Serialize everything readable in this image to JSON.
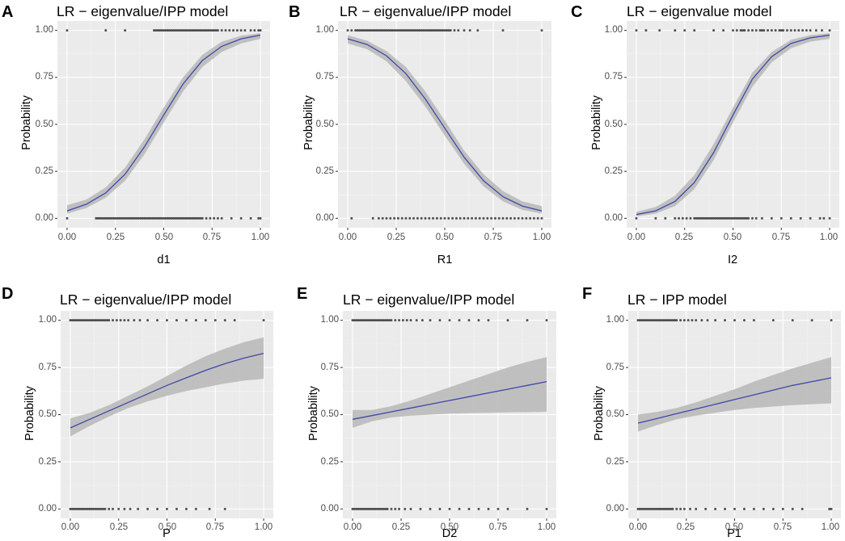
{
  "figure": {
    "background": "#ffffff"
  },
  "style": {
    "panel_bg": "#ebebeb",
    "grid_major": "#ffffff",
    "grid_minor": "#f5f5f5",
    "ribbon": "#bdbdbd",
    "line": "#3f48a8",
    "point": "#1a1a1a"
  },
  "chart_data": [
    {
      "letter": "A",
      "title": "LR − eigenvalue/IPP model",
      "type": "line",
      "xlabel": "d1",
      "ylabel": "Probability",
      "xlim": [
        0,
        1
      ],
      "ylim": [
        0,
        1
      ],
      "x_ticks": [
        "0.00",
        "0.25",
        "0.50",
        "0.75",
        "1.00"
      ],
      "y_ticks": [
        "0.00",
        "0.25",
        "0.50",
        "0.75",
        "1.00"
      ],
      "curve": {
        "x": [
          0,
          0.1,
          0.2,
          0.3,
          0.4,
          0.5,
          0.6,
          0.7,
          0.8,
          0.9,
          1.0
        ],
        "y": [
          0.04,
          0.075,
          0.135,
          0.235,
          0.38,
          0.55,
          0.715,
          0.84,
          0.915,
          0.955,
          0.975
        ],
        "lower": [
          0.025,
          0.055,
          0.11,
          0.2,
          0.34,
          0.51,
          0.675,
          0.805,
          0.885,
          0.93,
          0.955
        ],
        "upper": [
          0.07,
          0.1,
          0.165,
          0.27,
          0.42,
          0.59,
          0.75,
          0.87,
          0.94,
          0.972,
          0.985
        ]
      },
      "points": {
        "y1": [
          0.0,
          0.2,
          0.3,
          0.45,
          0.46,
          0.47,
          0.48,
          0.49,
          0.5,
          0.51,
          0.52,
          0.53,
          0.54,
          0.55,
          0.56,
          0.57,
          0.58,
          0.59,
          0.6,
          0.61,
          0.62,
          0.63,
          0.64,
          0.65,
          0.66,
          0.67,
          0.68,
          0.69,
          0.7,
          0.71,
          0.72,
          0.73,
          0.74,
          0.75,
          0.76,
          0.77,
          0.78,
          0.8,
          0.82,
          0.84,
          0.86,
          0.88,
          0.9,
          0.92,
          0.95,
          0.97,
          0.99,
          1.0
        ],
        "y0": [
          0.0,
          0.15,
          0.16,
          0.17,
          0.18,
          0.19,
          0.2,
          0.21,
          0.22,
          0.23,
          0.24,
          0.25,
          0.26,
          0.27,
          0.28,
          0.29,
          0.3,
          0.31,
          0.32,
          0.33,
          0.34,
          0.35,
          0.36,
          0.37,
          0.38,
          0.39,
          0.4,
          0.41,
          0.42,
          0.43,
          0.44,
          0.45,
          0.46,
          0.47,
          0.48,
          0.49,
          0.5,
          0.51,
          0.52,
          0.53,
          0.54,
          0.55,
          0.56,
          0.57,
          0.58,
          0.59,
          0.6,
          0.61,
          0.62,
          0.63,
          0.64,
          0.65,
          0.66,
          0.67,
          0.68,
          0.69,
          0.7,
          0.72,
          0.74,
          0.76,
          0.78,
          0.8,
          0.85,
          0.9,
          0.95,
          0.99,
          1.0
        ]
      }
    },
    {
      "letter": "B",
      "title": "LR − eigenvalue/IPP model",
      "type": "line",
      "xlabel": "R1",
      "ylabel": "Probability",
      "xlim": [
        0,
        1
      ],
      "ylim": [
        0,
        1
      ],
      "x_ticks": [
        "0.00",
        "0.25",
        "0.50",
        "0.75",
        "1.00"
      ],
      "y_ticks": [
        "0.00",
        "0.25",
        "0.50",
        "0.75",
        "1.00"
      ],
      "curve": {
        "x": [
          0,
          0.1,
          0.2,
          0.3,
          0.4,
          0.5,
          0.6,
          0.7,
          0.8,
          0.9,
          1.0
        ],
        "y": [
          0.955,
          0.925,
          0.865,
          0.77,
          0.635,
          0.48,
          0.325,
          0.2,
          0.115,
          0.065,
          0.04
        ],
        "lower": [
          0.93,
          0.9,
          0.835,
          0.73,
          0.595,
          0.44,
          0.29,
          0.17,
          0.09,
          0.045,
          0.025
        ],
        "upper": [
          0.975,
          0.945,
          0.89,
          0.805,
          0.675,
          0.52,
          0.36,
          0.235,
          0.145,
          0.09,
          0.065
        ]
      },
      "points": {
        "y1": [
          0.0,
          0.02,
          0.04,
          0.05,
          0.06,
          0.07,
          0.08,
          0.09,
          0.1,
          0.11,
          0.12,
          0.13,
          0.14,
          0.15,
          0.16,
          0.17,
          0.18,
          0.19,
          0.2,
          0.21,
          0.22,
          0.23,
          0.24,
          0.25,
          0.26,
          0.27,
          0.28,
          0.29,
          0.3,
          0.31,
          0.32,
          0.33,
          0.34,
          0.35,
          0.36,
          0.37,
          0.38,
          0.39,
          0.4,
          0.41,
          0.42,
          0.43,
          0.44,
          0.45,
          0.46,
          0.47,
          0.48,
          0.49,
          0.5,
          0.51,
          0.52,
          0.53,
          0.55,
          0.57,
          0.6,
          0.63,
          0.67,
          0.8,
          1.0
        ],
        "y0": [
          0.02,
          0.13,
          0.16,
          0.18,
          0.2,
          0.22,
          0.24,
          0.26,
          0.28,
          0.3,
          0.32,
          0.34,
          0.36,
          0.38,
          0.4,
          0.42,
          0.44,
          0.46,
          0.48,
          0.5,
          0.52,
          0.54,
          0.56,
          0.58,
          0.6,
          0.62,
          0.64,
          0.66,
          0.68,
          0.7,
          0.72,
          0.74,
          0.76,
          0.78,
          0.8,
          0.82,
          0.84,
          0.86,
          0.88,
          0.9,
          0.92,
          0.94,
          0.96,
          0.98,
          1.0
        ]
      }
    },
    {
      "letter": "C",
      "title": "LR − eigenvalue model",
      "type": "line",
      "xlabel": "I2",
      "ylabel": "Probability",
      "xlim": [
        0,
        1
      ],
      "ylim": [
        0,
        1
      ],
      "x_ticks": [
        "0.00",
        "0.25",
        "0.50",
        "0.75",
        "1.00"
      ],
      "y_ticks": [
        "0.00",
        "0.25",
        "0.50",
        "0.75",
        "1.00"
      ],
      "curve": {
        "x": [
          0,
          0.1,
          0.2,
          0.3,
          0.4,
          0.5,
          0.6,
          0.7,
          0.8,
          0.9,
          1.0
        ],
        "y": [
          0.02,
          0.04,
          0.09,
          0.19,
          0.35,
          0.55,
          0.74,
          0.86,
          0.93,
          0.96,
          0.975
        ],
        "lower": [
          0.01,
          0.025,
          0.065,
          0.155,
          0.31,
          0.51,
          0.7,
          0.83,
          0.905,
          0.94,
          0.955
        ],
        "upper": [
          0.035,
          0.06,
          0.12,
          0.23,
          0.395,
          0.59,
          0.775,
          0.885,
          0.95,
          0.975,
          0.985
        ]
      },
      "points": {
        "y1": [
          0.0,
          0.05,
          0.12,
          0.2,
          0.25,
          0.3,
          0.4,
          0.45,
          0.5,
          0.52,
          0.54,
          0.55,
          0.56,
          0.58,
          0.6,
          0.62,
          0.64,
          0.65,
          0.66,
          0.68,
          0.7,
          0.72,
          0.74,
          0.75,
          0.76,
          0.78,
          0.8,
          0.82,
          0.84,
          0.86,
          0.88,
          0.9,
          0.93,
          0.96,
          1.0
        ],
        "y0": [
          0.0,
          0.1,
          0.15,
          0.2,
          0.22,
          0.24,
          0.26,
          0.28,
          0.3,
          0.31,
          0.32,
          0.33,
          0.34,
          0.35,
          0.36,
          0.37,
          0.38,
          0.39,
          0.4,
          0.41,
          0.42,
          0.43,
          0.44,
          0.45,
          0.46,
          0.47,
          0.48,
          0.49,
          0.5,
          0.51,
          0.52,
          0.53,
          0.54,
          0.55,
          0.56,
          0.57,
          0.58,
          0.6,
          0.62,
          0.65,
          0.7,
          0.75,
          0.8,
          0.85,
          0.9,
          0.95,
          0.97,
          1.0
        ]
      }
    },
    {
      "letter": "D",
      "title": "LR − eigenvalue/IPP model",
      "type": "line",
      "xlabel": "P",
      "ylabel": "Probability",
      "xlim": [
        0,
        1
      ],
      "ylim": [
        0,
        1
      ],
      "x_ticks": [
        "0.00",
        "0.25",
        "0.50",
        "0.75",
        "1.00"
      ],
      "y_ticks": [
        "0.00",
        "0.25",
        "0.50",
        "0.75",
        "1.00"
      ],
      "curve": {
        "x": [
          0,
          0.1,
          0.2,
          0.3,
          0.4,
          0.5,
          0.6,
          0.7,
          0.8,
          0.9,
          1.0
        ],
        "y": [
          0.43,
          0.475,
          0.52,
          0.565,
          0.61,
          0.655,
          0.695,
          0.735,
          0.77,
          0.8,
          0.825
        ],
        "lower": [
          0.385,
          0.44,
          0.49,
          0.535,
          0.57,
          0.6,
          0.625,
          0.645,
          0.665,
          0.68,
          0.69
        ],
        "upper": [
          0.48,
          0.51,
          0.55,
          0.6,
          0.65,
          0.705,
          0.76,
          0.81,
          0.85,
          0.885,
          0.91
        ]
      },
      "points": {
        "y1": [
          0.0,
          0.01,
          0.02,
          0.03,
          0.04,
          0.05,
          0.06,
          0.07,
          0.08,
          0.09,
          0.1,
          0.11,
          0.12,
          0.13,
          0.14,
          0.15,
          0.16,
          0.17,
          0.18,
          0.19,
          0.2,
          0.22,
          0.24,
          0.26,
          0.28,
          0.3,
          0.33,
          0.36,
          0.4,
          0.45,
          0.5,
          0.55,
          0.6,
          0.65,
          0.7,
          0.75,
          0.8,
          0.85,
          1.0
        ],
        "y0": [
          0.0,
          0.01,
          0.02,
          0.03,
          0.04,
          0.05,
          0.06,
          0.07,
          0.08,
          0.09,
          0.1,
          0.11,
          0.12,
          0.13,
          0.14,
          0.15,
          0.16,
          0.17,
          0.18,
          0.2,
          0.22,
          0.25,
          0.28,
          0.31,
          0.35,
          0.4,
          0.45,
          0.5,
          0.55,
          0.6,
          0.65,
          0.72,
          0.8
        ]
      }
    },
    {
      "letter": "E",
      "title": "LR − eigenvalue/IPP model",
      "type": "line",
      "xlabel": "D2",
      "ylabel": "Probability",
      "xlim": [
        0,
        1
      ],
      "ylim": [
        0,
        1
      ],
      "x_ticks": [
        "0.00",
        "0.25",
        "0.50",
        "0.75",
        "1.00"
      ],
      "y_ticks": [
        "0.00",
        "0.25",
        "0.50",
        "0.75",
        "1.00"
      ],
      "curve": {
        "x": [
          0,
          0.1,
          0.2,
          0.3,
          0.4,
          0.5,
          0.6,
          0.7,
          0.8,
          0.9,
          1.0
        ],
        "y": [
          0.475,
          0.495,
          0.515,
          0.535,
          0.555,
          0.575,
          0.595,
          0.615,
          0.635,
          0.655,
          0.675
        ],
        "lower": [
          0.43,
          0.465,
          0.485,
          0.495,
          0.5,
          0.505,
          0.508,
          0.51,
          0.512,
          0.513,
          0.515
        ],
        "upper": [
          0.525,
          0.525,
          0.545,
          0.575,
          0.61,
          0.645,
          0.68,
          0.715,
          0.75,
          0.78,
          0.805
        ]
      },
      "points": {
        "y1": [
          0.0,
          0.01,
          0.02,
          0.03,
          0.04,
          0.05,
          0.06,
          0.07,
          0.08,
          0.09,
          0.1,
          0.11,
          0.12,
          0.13,
          0.14,
          0.15,
          0.16,
          0.17,
          0.18,
          0.19,
          0.2,
          0.22,
          0.24,
          0.26,
          0.28,
          0.3,
          0.33,
          0.36,
          0.4,
          0.45,
          0.5,
          0.55,
          0.6,
          0.65,
          0.7,
          0.8,
          0.9,
          1.0
        ],
        "y0": [
          0.0,
          0.01,
          0.02,
          0.03,
          0.04,
          0.05,
          0.06,
          0.07,
          0.08,
          0.09,
          0.1,
          0.11,
          0.12,
          0.13,
          0.14,
          0.15,
          0.16,
          0.17,
          0.18,
          0.2,
          0.22,
          0.24,
          0.27,
          0.3,
          0.35,
          0.4,
          0.45,
          0.5,
          0.55,
          0.6,
          0.65,
          0.7,
          0.75,
          0.8,
          0.9,
          1.0
        ]
      }
    },
    {
      "letter": "F",
      "title": "LR − IPP model",
      "type": "line",
      "xlabel": "P1",
      "ylabel": "Probability",
      "xlim": [
        0,
        1
      ],
      "ylim": [
        0,
        1
      ],
      "x_ticks": [
        "0.00",
        "0.25",
        "0.50",
        "0.75",
        "1.00"
      ],
      "y_ticks": [
        "0.00",
        "0.25",
        "0.50",
        "0.75",
        "1.00"
      ],
      "curve": {
        "x": [
          0,
          0.1,
          0.2,
          0.3,
          0.4,
          0.5,
          0.6,
          0.7,
          0.8,
          0.9,
          1.0
        ],
        "y": [
          0.455,
          0.48,
          0.505,
          0.53,
          0.555,
          0.58,
          0.605,
          0.63,
          0.655,
          0.675,
          0.695
        ],
        "lower": [
          0.41,
          0.445,
          0.475,
          0.495,
          0.51,
          0.525,
          0.535,
          0.543,
          0.55,
          0.555,
          0.56
        ],
        "upper": [
          0.5,
          0.515,
          0.535,
          0.565,
          0.6,
          0.635,
          0.675,
          0.71,
          0.745,
          0.775,
          0.805
        ]
      },
      "points": {
        "y1": [
          0.0,
          0.01,
          0.02,
          0.03,
          0.04,
          0.05,
          0.06,
          0.07,
          0.08,
          0.09,
          0.1,
          0.11,
          0.12,
          0.13,
          0.14,
          0.15,
          0.16,
          0.17,
          0.18,
          0.19,
          0.2,
          0.22,
          0.24,
          0.26,
          0.28,
          0.3,
          0.33,
          0.36,
          0.4,
          0.45,
          0.5,
          0.55,
          0.6,
          0.7,
          0.8,
          0.9,
          1.0
        ],
        "y0": [
          0.0,
          0.01,
          0.02,
          0.03,
          0.04,
          0.05,
          0.06,
          0.07,
          0.08,
          0.09,
          0.1,
          0.11,
          0.12,
          0.13,
          0.14,
          0.15,
          0.16,
          0.17,
          0.18,
          0.2,
          0.22,
          0.24,
          0.27,
          0.3,
          0.35,
          0.4,
          0.45,
          0.5,
          0.55,
          0.6,
          0.65,
          0.7,
          0.75,
          0.8,
          0.85,
          0.99,
          1.0
        ]
      }
    }
  ]
}
